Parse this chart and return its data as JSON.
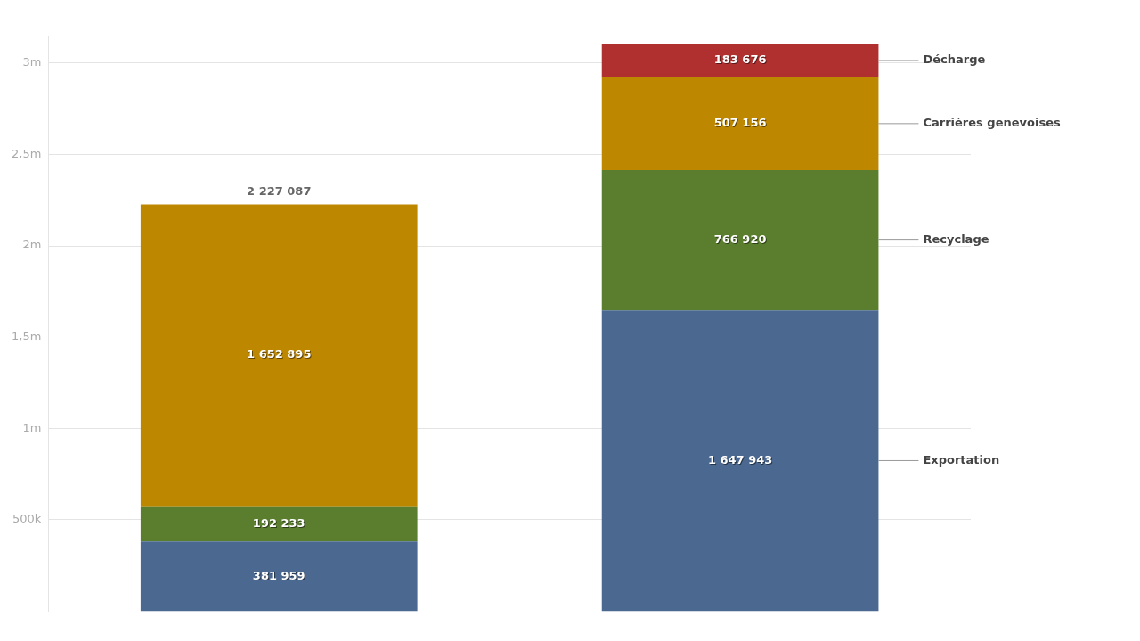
{
  "chart_data": {
    "type": "bar",
    "stacked": true,
    "categories": [
      null,
      null
    ],
    "series": [
      {
        "name": "Exportation",
        "color": "#4a6890",
        "values": [
          381959,
          1647943
        ]
      },
      {
        "name": "Recyclage",
        "color": "#5b7e2e",
        "values": [
          192233,
          766920
        ]
      },
      {
        "name": "Carrières genevoises",
        "color": "#bd8700",
        "values": [
          1652895,
          507156
        ]
      },
      {
        "name": "Décharge",
        "color": "#b03030",
        "values": [
          null,
          183676
        ]
      }
    ],
    "ylim": [
      0,
      3150000
    ],
    "yticks": [
      {
        "value": 500000,
        "label": "500k"
      },
      {
        "value": 1000000,
        "label": "1m"
      },
      {
        "value": 1500000,
        "label": "1,5m"
      },
      {
        "value": 2000000,
        "label": "2m"
      },
      {
        "value": 2500000,
        "label": "2,5m"
      },
      {
        "value": 3000000,
        "label": "3m"
      }
    ],
    "grid": "y",
    "legend": false,
    "data_labels": true,
    "totals": [
      "2 227 087",
      null
    ]
  }
}
